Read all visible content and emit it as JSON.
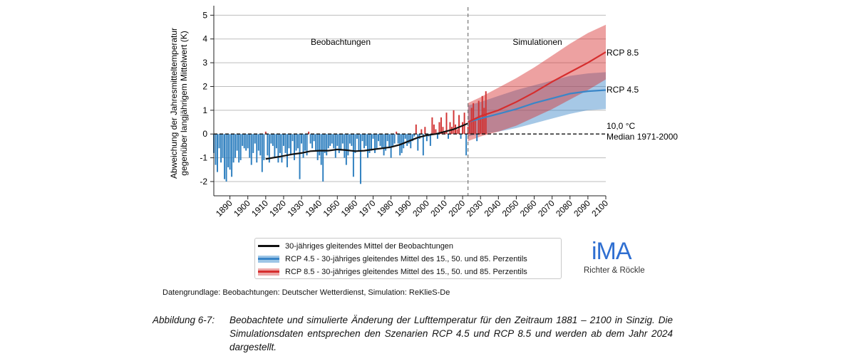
{
  "chart_data": {
    "type": "bar+line+area",
    "ylabel_line1": "Abweichung der Jahresmitteltemperatur",
    "ylabel_line2": "gegenüber langjährigem Mittelwert (K)",
    "xlim": [
      1881,
      2100
    ],
    "ylim": [
      -2.6,
      5.4
    ],
    "xticks": [
      1890,
      1900,
      1910,
      1920,
      1930,
      1940,
      1950,
      1960,
      1970,
      1980,
      1990,
      2000,
      2010,
      2020,
      2030,
      2040,
      2050,
      2060,
      2070,
      2080,
      2090,
      2100
    ],
    "yticks": [
      -2,
      -1,
      0,
      1,
      2,
      3,
      4,
      5
    ],
    "gridlines": "horizontal",
    "region_labels": {
      "observations": "Beobachtungen",
      "simulations": "Simulationen"
    },
    "divider_year": 2023,
    "annual_anomalies": {
      "years_start": 1881,
      "values": [
        -0.8,
        -1.3,
        -1.6,
        -0.6,
        -1.2,
        -1.0,
        -1.9,
        -2.0,
        -1.4,
        -1.5,
        -1.8,
        -1.2,
        -1.0,
        -0.7,
        -1.2,
        -1.1,
        -0.5,
        -0.6,
        -0.7,
        -0.6,
        -1.0,
        -1.3,
        -0.8,
        -0.4,
        -1.2,
        -0.7,
        -0.9,
        -1.6,
        -1.1,
        0.1,
        -0.9,
        -1.2,
        -0.4,
        -0.5,
        -1.0,
        -0.6,
        -1.2,
        -0.8,
        -1.2,
        -0.5,
        -0.8,
        -1.4,
        -0.6,
        -0.9,
        -0.3,
        -1.1,
        -0.7,
        -0.6,
        -1.9,
        -0.4,
        -1.0,
        -0.7,
        -0.9,
        0.1,
        -0.4,
        -0.6,
        -0.3,
        -0.7,
        -1.1,
        -0.9,
        -1.3,
        -2.0,
        -0.8,
        -0.9,
        -0.6,
        -0.5,
        -0.4,
        -0.6,
        -1.0,
        -0.5,
        -0.8,
        -0.7,
        -0.4,
        -1.0,
        -1.3,
        -0.9,
        -0.4,
        -0.5,
        -1.8,
        -0.8,
        -0.2,
        -0.7,
        -2.1,
        -0.3,
        -0.6,
        -0.5,
        -1.0,
        -0.8,
        -0.7,
        -0.2,
        -0.8,
        -0.6,
        -0.3,
        -0.5,
        -0.6,
        -0.9,
        -0.7,
        -0.3,
        -0.6,
        -1.0,
        -0.5,
        -0.4,
        0.1,
        -0.4,
        -0.9,
        -0.8,
        -0.6,
        -0.2,
        -0.5,
        -0.4,
        -0.6,
        -0.3,
        -0.1,
        0.4,
        -0.7,
        -0.2,
        0.2,
        -0.9,
        0.3,
        -0.3,
        -0.1,
        -0.5,
        0.7,
        0.4,
        0.2,
        -0.2,
        0.5,
        0.7,
        0.3,
        0.1,
        0.9,
        -0.2,
        0.5,
        0.3,
        1.0,
        0.4,
        0.2,
        0.8,
        -0.2,
        0.5,
        0.9,
        -0.9,
        0.3,
        0.5,
        1.1,
        1.3,
        0.6,
        -0.3,
        1.4,
        0.7,
        1.6,
        1.1,
        1.8
      ]
    },
    "observed_running_mean": {
      "x": [
        1910,
        1918,
        1925,
        1930,
        1935,
        1940,
        1945,
        1950,
        1955,
        1960,
        1965,
        1970,
        1975,
        1980,
        1985,
        1990,
        1995,
        2000,
        2005,
        2010,
        2015,
        2020,
        2023
      ],
      "y": [
        -1.05,
        -0.95,
        -0.85,
        -0.8,
        -0.72,
        -0.7,
        -0.7,
        -0.65,
        -0.68,
        -0.72,
        -0.7,
        -0.65,
        -0.6,
        -0.55,
        -0.45,
        -0.3,
        -0.15,
        -0.05,
        0.0,
        0.1,
        0.2,
        0.35,
        0.45
      ]
    },
    "series": [
      {
        "name": "RCP 4.5",
        "color": "#3a86c8",
        "x": [
          2023,
          2030,
          2040,
          2050,
          2060,
          2070,
          2080,
          2090,
          2100
        ],
        "p50": [
          0.5,
          0.65,
          0.85,
          1.05,
          1.3,
          1.5,
          1.7,
          1.8,
          1.85
        ],
        "p15": [
          -0.1,
          0.0,
          0.1,
          0.25,
          0.45,
          0.65,
          0.85,
          1.0,
          1.05
        ],
        "p85": [
          1.2,
          1.35,
          1.6,
          1.85,
          2.05,
          2.25,
          2.45,
          2.55,
          2.6
        ]
      },
      {
        "name": "RCP 8.5",
        "color": "#d62e2e",
        "x": [
          2023,
          2030,
          2040,
          2050,
          2060,
          2070,
          2080,
          2090,
          2100
        ],
        "p50": [
          0.5,
          0.75,
          1.0,
          1.35,
          1.75,
          2.2,
          2.6,
          3.0,
          3.45
        ],
        "p15": [
          -0.3,
          -0.1,
          0.1,
          0.35,
          0.7,
          1.05,
          1.45,
          1.85,
          2.3
        ],
        "p85": [
          1.3,
          1.55,
          1.95,
          2.35,
          2.8,
          3.3,
          3.8,
          4.25,
          4.6
        ]
      }
    ],
    "annotations": {
      "rcp85_label": "RCP 8.5",
      "rcp45_label": "RCP 4.5",
      "median_value": "10,0 °C",
      "median_label": "Median 1971-2000"
    },
    "colors": {
      "blue_bar": "#2e7fbf",
      "red_bar": "#d13434",
      "black_line": "#111111"
    }
  },
  "legend": {
    "items": [
      {
        "label": "30-jähriges gleitendes Mittel der Beobachtungen",
        "line": "#111111",
        "band": ""
      },
      {
        "label": "RCP 4.5 - 30-jähriges gleitendes Mittel des 15., 50. und 85. Perzentils",
        "line": "#3a86c8",
        "band": "#9ec6e6"
      },
      {
        "label": "RCP 8.5 - 30-jähriges gleitendes Mittel des 15., 50. und 85. Perzentils",
        "line": "#d62e2e",
        "band": "#eda7a7"
      }
    ]
  },
  "logo": {
    "main": "iMA",
    "sub": "Richter & Röckle",
    "color": "#2f6fd1"
  },
  "source_note": "Datengrundlage: Beobachtungen: Deutscher Wetterdienst, Simulation: ReKlieS-De",
  "caption": {
    "label": "Abbildung 6-7:",
    "text": "Beobachtete und simulierte Änderung der Lufttemperatur für den Zeitraum 1881 – 2100 in Sinzig. Die Simulationsdaten entsprechen den Szenarien RCP 4.5 und RCP 8.5 und werden ab dem Jahr 2024 dargestellt."
  }
}
